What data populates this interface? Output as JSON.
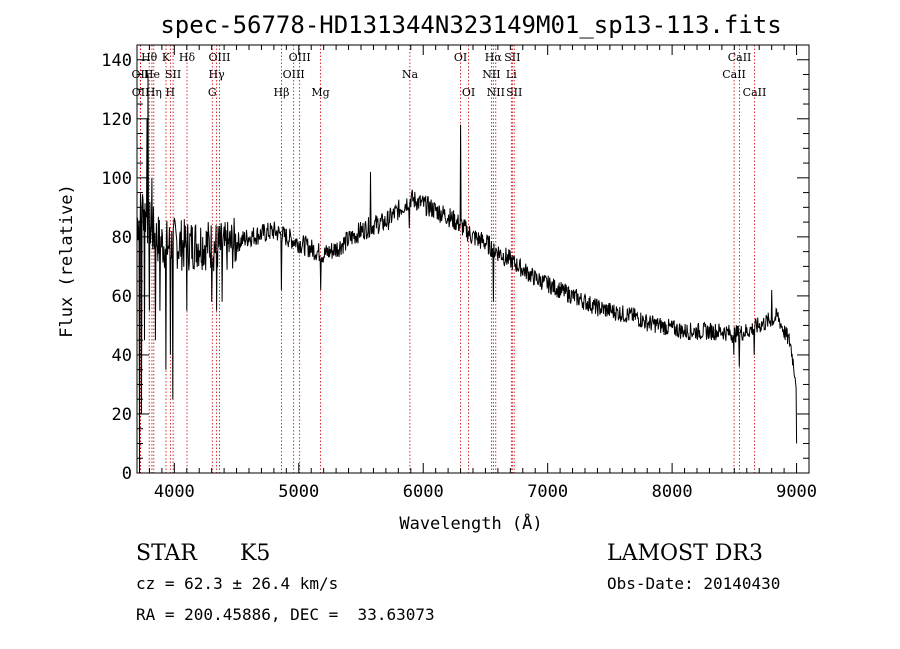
{
  "title": "spec-56778-HD131344N323149M01_sp13-113.fits",
  "info": {
    "class_label": "STAR",
    "subclass": "K5",
    "survey": "LAMOST DR3",
    "cz": "cz = 62.3 ± 26.4 km/s",
    "obs_date": "Obs-Date: 20140430",
    "coords": "RA = 200.45886, DEC =  33.63073"
  },
  "chart_data": {
    "type": "line",
    "title": "spec-56778-HD131344N323149M01_sp13-113.fits",
    "xlabel": "Wavelength (Å)",
    "ylabel": "Flux (relative)",
    "xlim": [
      3700,
      9100
    ],
    "ylim": [
      0,
      145
    ],
    "xticks": [
      4000,
      5000,
      6000,
      7000,
      8000,
      9000
    ],
    "yticks": [
      0,
      20,
      40,
      60,
      80,
      100,
      120,
      140
    ],
    "grid": false,
    "line_color": "#000000",
    "marker_color": "#cc0000",
    "continuum": [
      [
        3700,
        85
      ],
      [
        3750,
        90
      ],
      [
        3800,
        84
      ],
      [
        3850,
        80
      ],
      [
        3900,
        78
      ],
      [
        3950,
        77
      ],
      [
        4000,
        78
      ],
      [
        4100,
        77
      ],
      [
        4200,
        78
      ],
      [
        4300,
        77
      ],
      [
        4400,
        76
      ],
      [
        4500,
        78
      ],
      [
        4600,
        80
      ],
      [
        4700,
        81
      ],
      [
        4800,
        82
      ],
      [
        4900,
        80
      ],
      [
        5000,
        78
      ],
      [
        5100,
        76
      ],
      [
        5200,
        74
      ],
      [
        5300,
        76
      ],
      [
        5400,
        79
      ],
      [
        5500,
        82
      ],
      [
        5600,
        84
      ],
      [
        5700,
        85
      ],
      [
        5800,
        89
      ],
      [
        5900,
        93
      ],
      [
        6000,
        91
      ],
      [
        6100,
        89
      ],
      [
        6200,
        87
      ],
      [
        6300,
        84
      ],
      [
        6400,
        80
      ],
      [
        6500,
        78
      ],
      [
        6600,
        75
      ],
      [
        6700,
        72
      ],
      [
        6800,
        69
      ],
      [
        6900,
        66
      ],
      [
        7000,
        64
      ],
      [
        7100,
        62
      ],
      [
        7200,
        60
      ],
      [
        7300,
        58
      ],
      [
        7400,
        56
      ],
      [
        7500,
        55
      ],
      [
        7600,
        54
      ],
      [
        7700,
        53
      ],
      [
        7800,
        51
      ],
      [
        7900,
        50
      ],
      [
        8000,
        49
      ],
      [
        8100,
        48
      ],
      [
        8200,
        48
      ],
      [
        8300,
        48
      ],
      [
        8400,
        48
      ],
      [
        8500,
        47
      ],
      [
        8600,
        48
      ],
      [
        8700,
        50
      ],
      [
        8800,
        52
      ],
      [
        8850,
        53
      ],
      [
        8900,
        48
      ],
      [
        8950,
        44
      ],
      [
        9000,
        30
      ]
    ],
    "features": [
      [
        3720,
        0
      ],
      [
        3735,
        20
      ],
      [
        3760,
        45
      ],
      [
        3780,
        120
      ],
      [
        3790,
        135
      ],
      [
        3800,
        55
      ],
      [
        3820,
        100
      ],
      [
        3850,
        45
      ],
      [
        3885,
        55
      ],
      [
        3933,
        35
      ],
      [
        3968,
        40
      ],
      [
        3990,
        25
      ],
      [
        4102,
        55
      ],
      [
        4300,
        58
      ],
      [
        4340,
        55
      ],
      [
        4383,
        58
      ],
      [
        4861,
        62
      ],
      [
        5175,
        62
      ],
      [
        5577,
        102
      ],
      [
        5890,
        83
      ],
      [
        6300,
        118
      ],
      [
        6563,
        58
      ],
      [
        8498,
        40
      ],
      [
        8542,
        36
      ],
      [
        8662,
        40
      ],
      [
        8800,
        62
      ],
      [
        9000,
        10
      ]
    ],
    "lines": [
      {
        "label": "Hθ",
        "wl": 3798,
        "row": 0
      },
      {
        "label": "OII",
        "wl": 3727,
        "row": 1
      },
      {
        "label": "OII",
        "wl": 3729,
        "row": 2
      },
      {
        "label": "He",
        "wl": 3820,
        "row": 1
      },
      {
        "label": "Hη",
        "wl": 3835,
        "row": 2
      },
      {
        "label": "K",
        "wl": 3933,
        "row": 0
      },
      {
        "label": "SII",
        "wl": 3990,
        "row": 1
      },
      {
        "label": "H",
        "wl": 3968,
        "row": 2
      },
      {
        "label": "Hδ",
        "wl": 4102,
        "row": 0
      },
      {
        "label": "OIII",
        "wl": 4363,
        "row": 0
      },
      {
        "label": "Hγ",
        "wl": 4340,
        "row": 1
      },
      {
        "label": "G",
        "wl": 4305,
        "row": 2
      },
      {
        "label": "Hβ",
        "wl": 4861,
        "row": 2
      },
      {
        "label": "OIII",
        "wl": 5007,
        "row": 0
      },
      {
        "label": "OIII",
        "wl": 4959,
        "row": 1
      },
      {
        "label": "Mg",
        "wl": 5175,
        "row": 2
      },
      {
        "label": "Na",
        "wl": 5893,
        "row": 1
      },
      {
        "label": "OI",
        "wl": 6300,
        "row": 0
      },
      {
        "label": "OI",
        "wl": 6364,
        "row": 2
      },
      {
        "label": "Hα",
        "wl": 6563,
        "row": 0
      },
      {
        "label": "NII",
        "wl": 6548,
        "row": 1
      },
      {
        "label": "NII",
        "wl": 6583,
        "row": 2
      },
      {
        "label": "SII",
        "wl": 6716,
        "row": 0
      },
      {
        "label": "Li",
        "wl": 6708,
        "row": 1
      },
      {
        "label": "SII",
        "wl": 6731,
        "row": 2
      },
      {
        "label": "CaII",
        "wl": 8542,
        "row": 0
      },
      {
        "label": "CaII",
        "wl": 8498,
        "row": 1
      },
      {
        "label": "CaII",
        "wl": 8662,
        "row": 2
      }
    ]
  }
}
